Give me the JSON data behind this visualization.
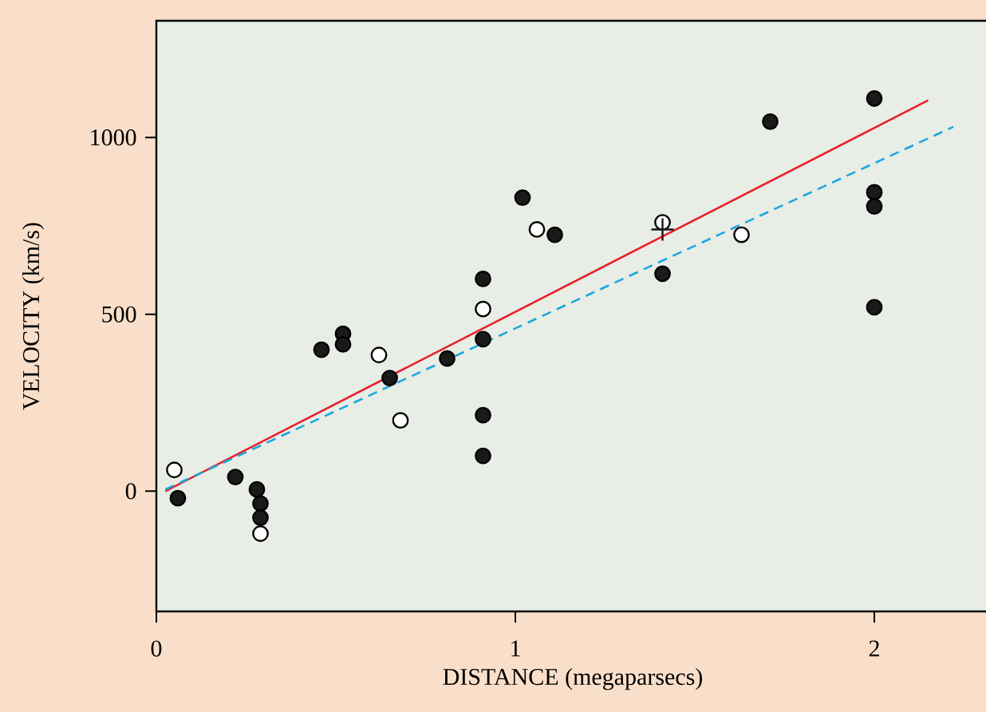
{
  "chart_data": {
    "type": "scatter",
    "xlabel": "DISTANCE (megaparsecs)",
    "ylabel": "VELOCITY (km/s)",
    "xlim": [
      0,
      2.32
    ],
    "ylim": [
      -340,
      1330
    ],
    "xticks": [
      0,
      1,
      2
    ],
    "yticks": [
      0,
      500,
      1000
    ],
    "series": [
      {
        "marker": "circle",
        "color": "#1a1a1a",
        "x": [
          0.06,
          0.22,
          0.28,
          0.29,
          0.29,
          0.46,
          0.52,
          0.52,
          0.65,
          0.81,
          0.91,
          0.91,
          0.91,
          0.91,
          1.02,
          1.11,
          1.41,
          1.71,
          2.0,
          2.0,
          2.0,
          2.0
        ],
        "values": [
          -20,
          40,
          5,
          -35,
          -75,
          400,
          445,
          415,
          320,
          375,
          600,
          430,
          215,
          100,
          830,
          725,
          615,
          1045,
          1110,
          845,
          805,
          520
        ]
      },
      {
        "marker": "circle",
        "color": "#ffffff",
        "x": [
          0.05,
          0.29,
          0.62,
          0.68,
          0.91,
          1.06,
          1.41,
          1.63
        ],
        "values": [
          60,
          -120,
          385,
          200,
          515,
          740,
          760,
          725
        ]
      },
      {
        "type": "scatter",
        "marker": "cross",
        "color": "#1a1a1a",
        "x": [
          1.41
        ],
        "values": [
          740
        ]
      },
      {
        "type": "line",
        "marker": "none",
        "color": "#e8202a",
        "line_style": "solid",
        "x": [
          0.025,
          2.15
        ],
        "values": [
          0,
          1105
        ]
      },
      {
        "type": "line",
        "marker": "none",
        "color": "#1aa7e0",
        "line_style": "dashed",
        "x": [
          0.025,
          2.22
        ],
        "values": [
          5,
          1030
        ]
      }
    ]
  }
}
